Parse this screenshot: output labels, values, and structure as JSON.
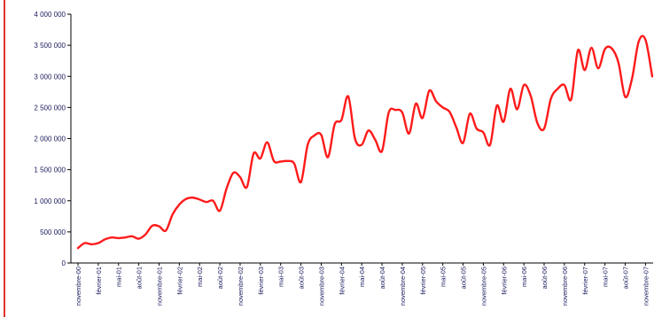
{
  "colors": {
    "line": "#ff1a1a",
    "axis": "#000000",
    "text": "#1a1a5e",
    "border": "#e3312d"
  },
  "chart_data": {
    "type": "line",
    "title": "",
    "xlabel": "",
    "ylabel": "",
    "ylim": [
      0,
      4000000
    ],
    "grid": false,
    "yticks": [
      0,
      500000,
      1000000,
      1500000,
      2000000,
      2500000,
      3000000,
      3500000,
      4000000
    ],
    "ytick_labels": [
      "0",
      "500 000",
      "1 000 000",
      "1 500 000",
      "2 000 000",
      "2 500 000",
      "3 000 000",
      "3 500 000",
      "4 000 000"
    ],
    "x_tick_labels": [
      {
        "label": "novembre-00",
        "index": 0
      },
      {
        "label": "février-01",
        "index": 3
      },
      {
        "label": "mai-01",
        "index": 6
      },
      {
        "label": "août-01",
        "index": 9
      },
      {
        "label": "novembre-01",
        "index": 12
      },
      {
        "label": "février-02",
        "index": 15
      },
      {
        "label": "mai-02",
        "index": 18
      },
      {
        "label": "août-02",
        "index": 21
      },
      {
        "label": "novembre-02",
        "index": 24
      },
      {
        "label": "février-03",
        "index": 27
      },
      {
        "label": "mai-03",
        "index": 30
      },
      {
        "label": "août-03",
        "index": 33
      },
      {
        "label": "novembre-03",
        "index": 36
      },
      {
        "label": "février-04",
        "index": 39
      },
      {
        "label": "mai-04",
        "index": 42
      },
      {
        "label": "août-04",
        "index": 45
      },
      {
        "label": "novembre-04",
        "index": 48
      },
      {
        "label": "février-05",
        "index": 51
      },
      {
        "label": "mai-05",
        "index": 54
      },
      {
        "label": "août-05",
        "index": 57
      },
      {
        "label": "novembre-05",
        "index": 60
      },
      {
        "label": "février-06",
        "index": 63
      },
      {
        "label": "mai-06",
        "index": 66
      },
      {
        "label": "août-06",
        "index": 69
      },
      {
        "label": "novembre-06",
        "index": 72
      },
      {
        "label": "février-07",
        "index": 75
      },
      {
        "label": "mai-07",
        "index": 78
      },
      {
        "label": "août-07",
        "index": 81
      },
      {
        "label": "novembre-07",
        "index": 84
      }
    ],
    "series": [
      {
        "values": [
          240000,
          320000,
          300000,
          320000,
          380000,
          410000,
          400000,
          410000,
          430000,
          390000,
          460000,
          600000,
          590000,
          520000,
          780000,
          940000,
          1030000,
          1050000,
          1020000,
          980000,
          1000000,
          840000,
          1200000,
          1450000,
          1380000,
          1220000,
          1760000,
          1680000,
          1940000,
          1640000,
          1630000,
          1640000,
          1600000,
          1300000,
          1900000,
          2050000,
          2060000,
          1700000,
          2230000,
          2300000,
          2680000,
          2000000,
          1900000,
          2130000,
          1980000,
          1800000,
          2420000,
          2460000,
          2420000,
          2080000,
          2560000,
          2330000,
          2770000,
          2600000,
          2500000,
          2430000,
          2180000,
          1930000,
          2400000,
          2160000,
          2100000,
          1900000,
          2530000,
          2270000,
          2800000,
          2470000,
          2860000,
          2690000,
          2250000,
          2160000,
          2640000,
          2800000,
          2860000,
          2630000,
          3420000,
          3100000,
          3460000,
          3130000,
          3440000,
          3450000,
          3220000,
          2670000,
          2960000,
          3560000,
          3590000,
          3000000
        ]
      }
    ]
  }
}
